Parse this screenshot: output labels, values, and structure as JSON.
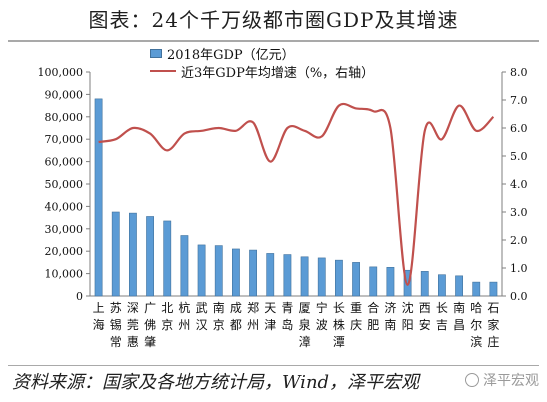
{
  "title": "图表：24个千万级都市圈GDP及其增速",
  "source": "资料来源：国家及各地方统计局，Wind，泽平宏观",
  "watermark": "泽平宏观",
  "colors": {
    "bar": "#5b9bd5",
    "bar_edge": "#41719c",
    "line": "#c0504d",
    "axis_text": "#111111"
  },
  "chart_data": {
    "type": "bar",
    "categories": [
      "上海",
      "苏锡常",
      "深莞惠",
      "广佛肇",
      "北京",
      "杭州",
      "武汉",
      "南京",
      "成都",
      "郑州",
      "天津",
      "青岛",
      "厦泉漳",
      "宁波",
      "长株潭",
      "重庆",
      "合肥",
      "济南",
      "沈阳",
      "西安",
      "长吉",
      "南昌",
      "哈尔滨",
      "石家庄"
    ],
    "category_lines": [
      [
        "上",
        "海"
      ],
      [
        "苏",
        "锡",
        "常"
      ],
      [
        "深",
        "莞",
        "惠"
      ],
      [
        "广",
        "佛",
        "肇"
      ],
      [
        "北",
        "京"
      ],
      [
        "杭",
        "州"
      ],
      [
        "武",
        "汉"
      ],
      [
        "南",
        "京"
      ],
      [
        "成",
        "都"
      ],
      [
        "郑",
        "州"
      ],
      [
        "天",
        "津"
      ],
      [
        "青",
        "岛"
      ],
      [
        "厦",
        "泉",
        "漳"
      ],
      [
        "宁",
        "波"
      ],
      [
        "长",
        "株",
        "潭"
      ],
      [
        "重",
        "庆"
      ],
      [
        "合",
        "肥"
      ],
      [
        "济",
        "南"
      ],
      [
        "沈",
        "阳"
      ],
      [
        "西",
        "安"
      ],
      [
        "长",
        "吉"
      ],
      [
        "南",
        "昌"
      ],
      [
        "哈",
        "尔",
        "滨"
      ],
      [
        "石",
        "家",
        "庄"
      ]
    ],
    "series": [
      {
        "name": "2018年GDP（亿元）",
        "type": "bar",
        "axis": "left",
        "values": [
          88000,
          37500,
          37000,
          35500,
          33500,
          27000,
          22800,
          22500,
          21000,
          20500,
          19000,
          18500,
          17500,
          17000,
          16000,
          15000,
          13000,
          12800,
          11500,
          11000,
          9500,
          9000,
          6200,
          6200
        ]
      },
      {
        "name": "近3年GDP年均增速（%，右轴）",
        "type": "line",
        "axis": "right",
        "values": [
          5.5,
          5.6,
          6.0,
          5.8,
          5.2,
          5.8,
          5.9,
          6.0,
          5.9,
          6.2,
          4.8,
          6.0,
          5.9,
          5.7,
          6.8,
          6.7,
          6.6,
          6.0,
          0.4,
          5.9,
          5.6,
          6.8,
          5.9,
          6.4
        ]
      }
    ],
    "y_left": {
      "min": 0,
      "max": 100000,
      "step": 10000,
      "tick_labels": [
        "0",
        "10,000",
        "20,000",
        "30,000",
        "40,000",
        "50,000",
        "60,000",
        "70,000",
        "80,000",
        "90,000",
        "100,000"
      ]
    },
    "y_right": {
      "min": 0,
      "max": 8,
      "step": 1,
      "tick_labels": [
        "0.0",
        "1.0",
        "2.0",
        "3.0",
        "4.0",
        "5.0",
        "6.0",
        "7.0",
        "8.0"
      ]
    },
    "grid": false,
    "legend_position": "top-center"
  }
}
